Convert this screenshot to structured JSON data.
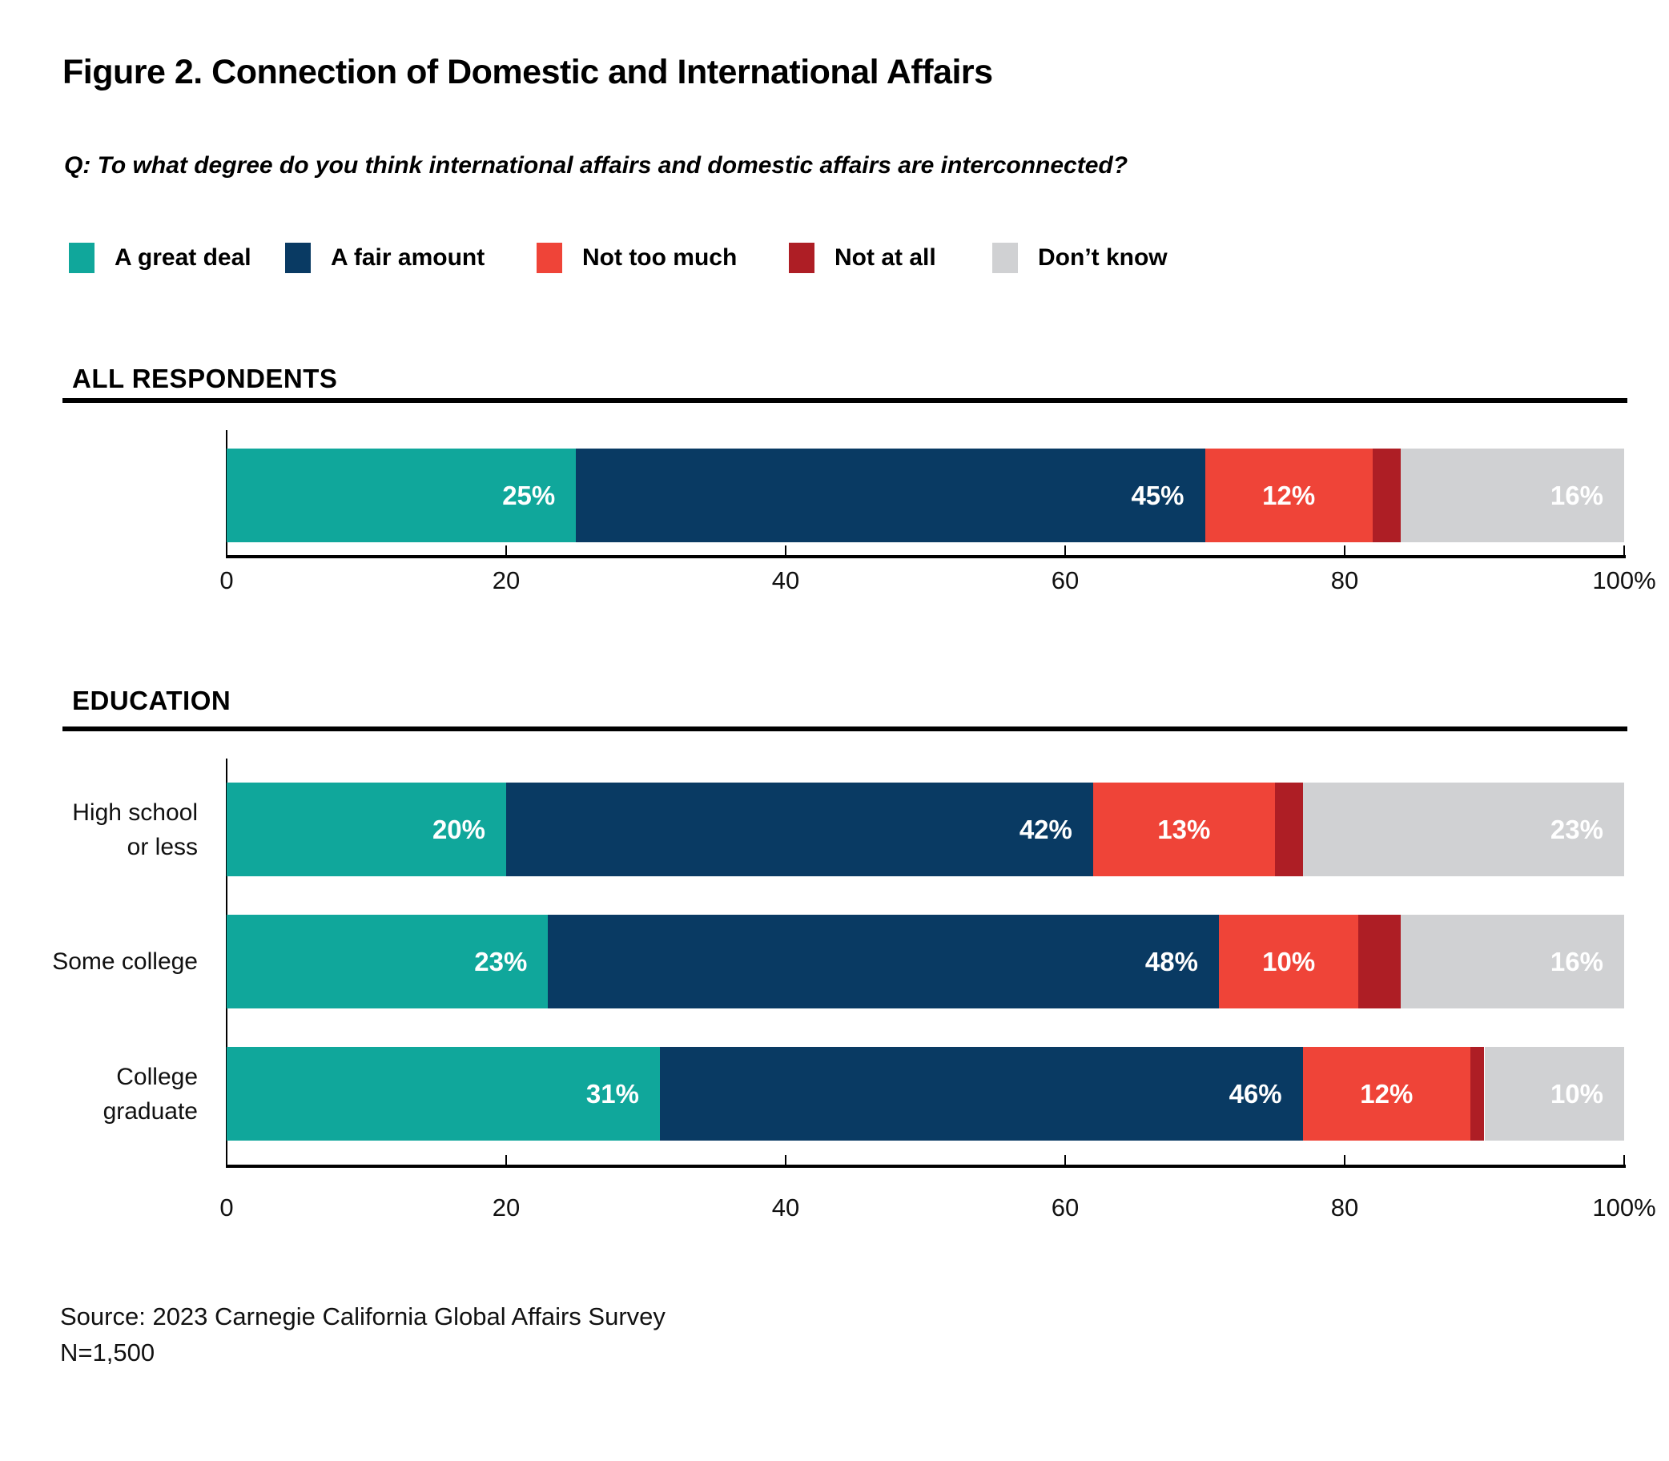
{
  "header": {
    "figure_title": "Figure 2. Connection of Domestic and International Affairs",
    "question": "Q: To what degree do you think international affairs and domestic affairs are interconnected?"
  },
  "legend": {
    "items": [
      {
        "label": "A great deal",
        "color": "#10A79B"
      },
      {
        "label": "A fair amount",
        "color": "#093A63"
      },
      {
        "label": "Not too much",
        "color": "#EF4438"
      },
      {
        "label": "Not at all",
        "color": "#AE1E25"
      },
      {
        "label": "Don’t know",
        "color": "#D0D1D3"
      }
    ]
  },
  "sections": {
    "all_respondents_label": "ALL RESPONDENTS",
    "education_label": "EDUCATION"
  },
  "axis": {
    "tick_labels": [
      "0",
      "20",
      "40",
      "60",
      "80",
      "100%"
    ],
    "tick_values": [
      0,
      20,
      40,
      60,
      80,
      100
    ]
  },
  "chart_data": [
    {
      "type": "bar",
      "stacked": true,
      "orientation": "horizontal",
      "section": "ALL RESPONDENTS",
      "categories": [
        "All respondents"
      ],
      "category_lines": [
        []
      ],
      "series": [
        {
          "name": "A great deal",
          "color": "#10A79B",
          "values": [
            25
          ]
        },
        {
          "name": "A fair amount",
          "color": "#093A63",
          "values": [
            45
          ]
        },
        {
          "name": "Not too much",
          "color": "#EF4438",
          "values": [
            12
          ]
        },
        {
          "name": "Not at all",
          "color": "#AE1E25",
          "values": [
            2
          ]
        },
        {
          "name": "Don’t know",
          "color": "#D0D1D3",
          "values": [
            16
          ]
        }
      ],
      "xlim": [
        0,
        100
      ],
      "value_label_suffix": "%",
      "value_label_min": 10,
      "grid": false,
      "legend_position": "top"
    },
    {
      "type": "bar",
      "stacked": true,
      "orientation": "horizontal",
      "section": "EDUCATION",
      "categories": [
        "High school or less",
        "Some college",
        "College graduate"
      ],
      "category_lines": [
        [
          "High school",
          "or less"
        ],
        [
          "Some college"
        ],
        [
          "College",
          "graduate"
        ]
      ],
      "series": [
        {
          "name": "A great deal",
          "color": "#10A79B",
          "values": [
            20,
            23,
            31
          ]
        },
        {
          "name": "A fair amount",
          "color": "#093A63",
          "values": [
            42,
            48,
            46
          ]
        },
        {
          "name": "Not too much",
          "color": "#EF4438",
          "values": [
            13,
            10,
            12
          ]
        },
        {
          "name": "Not at all",
          "color": "#AE1E25",
          "values": [
            2,
            3,
            1
          ]
        },
        {
          "name": "Don’t know",
          "color": "#D0D1D3",
          "values": [
            23,
            16,
            10
          ]
        }
      ],
      "xlim": [
        0,
        100
      ],
      "value_label_suffix": "%",
      "value_label_min": 10,
      "grid": false,
      "legend_position": "top"
    }
  ],
  "source": {
    "line1": "Source: 2023 Carnegie California Global Affairs Survey",
    "line2": "N=1,500"
  }
}
